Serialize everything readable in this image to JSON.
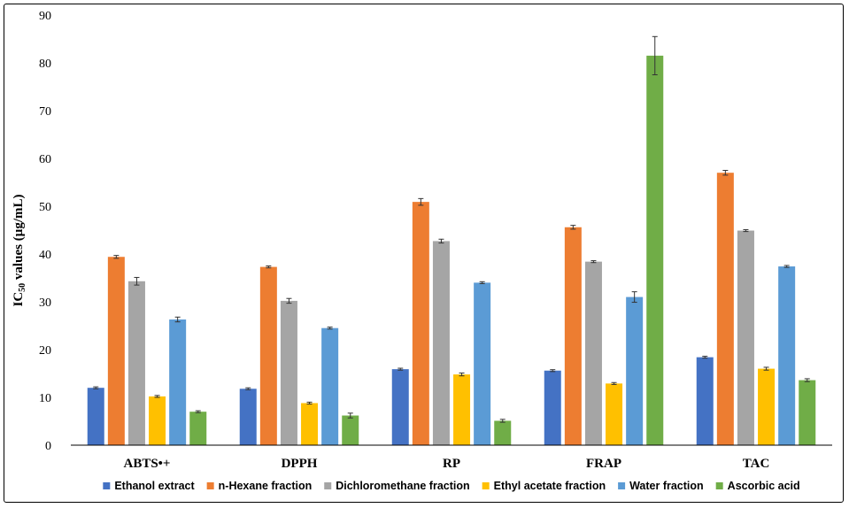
{
  "chart_data": {
    "type": "bar",
    "title": "",
    "xlabel": "",
    "ylabel_main": "IC",
    "ylabel_sub": "50",
    "ylabel_rest": " values (µg/mL)",
    "ylim": [
      0,
      90
    ],
    "yticks": [
      "0",
      "10",
      "20",
      "30",
      "40",
      "50",
      "60",
      "70",
      "80",
      "90"
    ],
    "grid": false,
    "legend_position": "bottom",
    "categories": [
      "ABTS•+",
      "DPPH",
      "RP",
      "FRAP",
      "TAC"
    ],
    "series": [
      {
        "name": "Ethanol extract",
        "color": "#4472C4",
        "values": [
          12.0,
          11.8,
          15.9,
          15.6,
          18.4
        ],
        "errors": [
          0.2,
          0.2,
          0.2,
          0.2,
          0.2
        ]
      },
      {
        "name": "n-Hexane fraction",
        "color": "#ED7D31",
        "values": [
          39.4,
          37.3,
          50.9,
          45.6,
          57.0
        ],
        "errors": [
          0.3,
          0.2,
          0.7,
          0.4,
          0.5
        ]
      },
      {
        "name": "Dichloromethane fraction",
        "color": "#A5A5A5",
        "values": [
          34.3,
          30.2,
          42.7,
          38.4,
          44.9
        ],
        "errors": [
          0.8,
          0.5,
          0.4,
          0.2,
          0.2
        ]
      },
      {
        "name": "Ethyl acetate fraction",
        "color": "#FFC000",
        "values": [
          10.2,
          8.8,
          14.8,
          12.9,
          16.0
        ],
        "errors": [
          0.2,
          0.2,
          0.3,
          0.2,
          0.3
        ]
      },
      {
        "name": "Water fraction",
        "color": "#5B9BD5",
        "values": [
          26.3,
          24.5,
          34.0,
          31.0,
          37.4
        ],
        "errors": [
          0.5,
          0.2,
          0.2,
          1.1,
          0.2
        ]
      },
      {
        "name": "Ascorbic acid",
        "color": "#70AD47",
        "values": [
          7.0,
          6.2,
          5.1,
          81.5,
          13.6
        ],
        "errors": [
          0.2,
          0.5,
          0.3,
          4.0,
          0.3
        ]
      }
    ]
  }
}
